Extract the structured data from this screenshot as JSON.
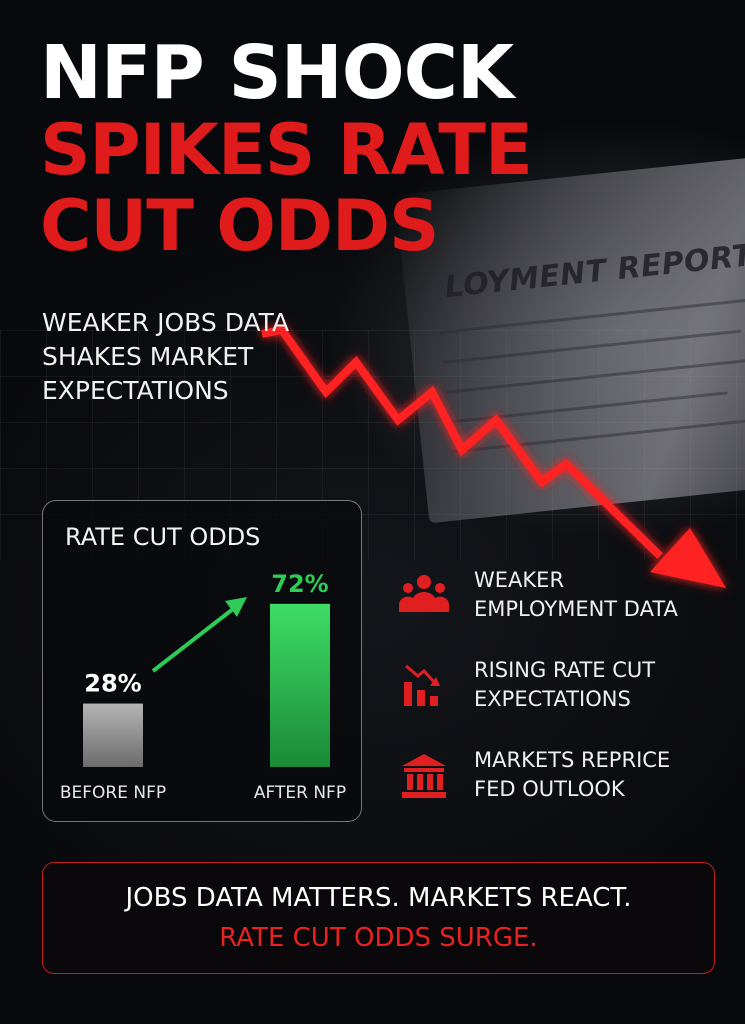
{
  "headline": {
    "line1": "NFP SHOCK",
    "line2": "SPIKES RATE",
    "line3": "CUT ODDS"
  },
  "subtitle": {
    "line1": "WEAKER JOBS DATA",
    "line2": "SHAKES MARKET",
    "line3": "EXPECTATIONS"
  },
  "background_document": {
    "title": "LOYMENT REPORT"
  },
  "rate_card": {
    "title": "RATE CUT ODDS"
  },
  "chart_data": {
    "type": "bar",
    "title": "RATE CUT ODDS",
    "categories": [
      "BEFORE NFP",
      "AFTER NFP"
    ],
    "values": [
      28,
      72
    ],
    "value_labels": [
      "28%",
      "72%"
    ],
    "ylim": [
      0,
      100
    ],
    "bar_colors": [
      "#9a9a9a",
      "#2ecc55"
    ],
    "trend_arrow_color": "#2ecc55"
  },
  "features": [
    {
      "icon": "people-group-icon",
      "line1": "WEAKER",
      "line2": "EMPLOYMENT DATA"
    },
    {
      "icon": "falling-bar-chart-icon",
      "line1": "RISING RATE CUT",
      "line2": "EXPECTATIONS"
    },
    {
      "icon": "bank-building-icon",
      "line1": "MARKETS REPRICE",
      "line2": "FED OUTLOOK"
    }
  ],
  "footer": {
    "line1": "JOBS DATA MATTERS. MARKETS REACT.",
    "line2": "RATE CUT ODDS SURGE."
  },
  "colors": {
    "accent_red": "#e01b1b",
    "positive_green": "#2ecc55",
    "background": "#0a0b0f"
  }
}
